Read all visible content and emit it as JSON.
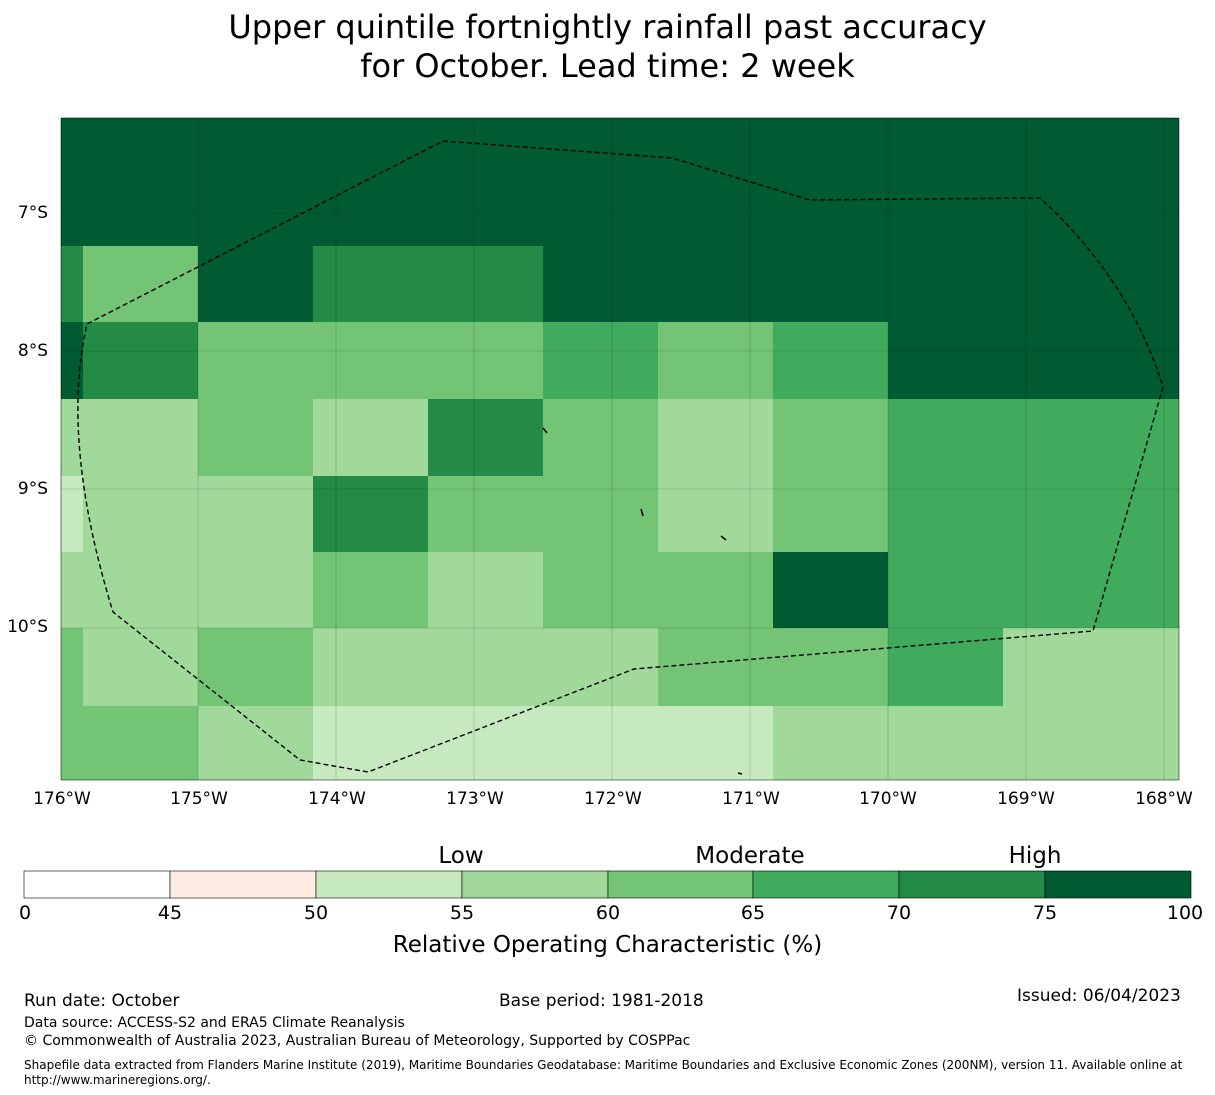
{
  "title": {
    "line1": "Upper quintile fortnightly rainfall past accuracy",
    "line2": "for October. Lead time: 2 week"
  },
  "map": {
    "lat_labels": [
      "7°S",
      "8°S",
      "9°S",
      "10°S"
    ],
    "lon_labels": [
      "176°W",
      "175°W",
      "174°W",
      "173°W",
      "172°W",
      "171°W",
      "170°W",
      "169°W",
      "168°W"
    ],
    "cell_class_grid": [
      [
        7,
        7,
        7,
        7,
        7,
        7,
        7,
        7,
        7,
        7
      ],
      [
        6,
        4,
        7,
        6,
        6,
        7,
        7,
        7,
        7,
        7
      ],
      [
        7,
        6,
        4,
        4,
        4,
        5,
        4,
        5,
        7,
        7
      ],
      [
        3,
        3,
        4,
        3,
        6,
        4,
        3,
        4,
        5,
        5
      ],
      [
        2,
        3,
        3,
        6,
        4,
        4,
        3,
        4,
        5,
        5
      ],
      [
        3,
        3,
        3,
        4,
        3,
        4,
        4,
        7,
        5,
        5
      ],
      [
        4,
        3,
        4,
        3,
        3,
        3,
        4,
        4,
        5,
        3
      ],
      [
        4,
        4,
        3,
        2,
        2,
        2,
        2,
        3,
        3,
        3
      ]
    ]
  },
  "legend": {
    "category_labels": [
      "Low",
      "Moderate",
      "High"
    ],
    "ticks": [
      "0",
      "45",
      "50",
      "55",
      "60",
      "65",
      "70",
      "75",
      "100"
    ],
    "colors": [
      "#ffffff",
      "#feebe2",
      "#c7e9c0",
      "#a1d99b",
      "#74c476",
      "#41ab5d",
      "#238b45",
      "#005a32"
    ],
    "label": "Relative Operating Characteristic (%)"
  },
  "footer": {
    "run_date": "Run date: October",
    "base_period": "Base period: 1981-2018",
    "issued": "Issued: 06/04/2023",
    "data_source": "Data source: ACCESS-S2 and ERA5 Climate Reanalysis",
    "copyright": "© Commonwealth of Australia 2023, Australian Bureau of Meteorology, Supported by COSPPac",
    "shapefile_line1": "Shapefile data extracted from Flanders Marine Institute (2019), Maritime Boundaries Geodatabase: Maritime Boundaries and Exclusive Economic Zones (200NM), version 11. Available online at",
    "shapefile_line2": "http://www.marineregions.org/."
  }
}
